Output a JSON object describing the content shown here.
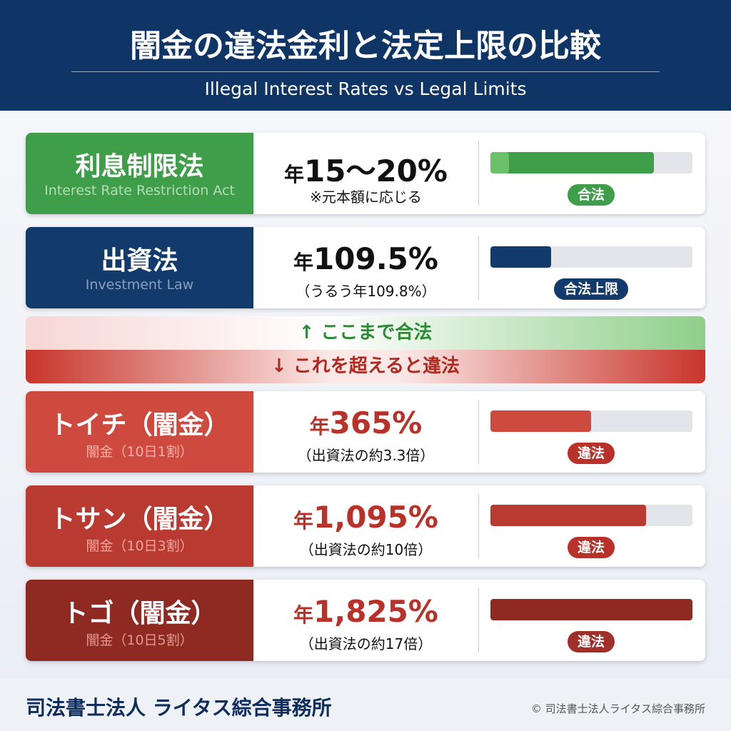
{
  "header": {
    "title": "闇金の違法金利と法定上限の比較",
    "subtitle": "Illegal Interest Rates vs Legal Limits"
  },
  "rows": [
    {
      "name": "利息制限法",
      "sub": "Interest Rate Restriction Act",
      "prefix": "年",
      "rate": "15～20%",
      "note": "※元本額に応じる",
      "badge": "合法"
    },
    {
      "name": "出資法",
      "sub": "Investment Law",
      "prefix": "年",
      "rate": "109.5%",
      "note": "（うるう年109.8%）",
      "badge": "合法上限"
    },
    {
      "name": "トイチ（闇金）",
      "sub": "闇金（10日1割）",
      "prefix": "年",
      "rate": "365%",
      "note": "（出資法の約3.3倍）",
      "badge": "違法"
    },
    {
      "name": "トサン（闇金）",
      "sub": "闇金（10日3割）",
      "prefix": "年",
      "rate": "1,095%",
      "note": "（出資法の約10倍）",
      "badge": "違法"
    },
    {
      "name": "トゴ（闇金）",
      "sub": "闇金（10日5割）",
      "prefix": "年",
      "rate": "1,825%",
      "note": "（出資法の約17倍）",
      "badge": "違法"
    }
  ],
  "divider": {
    "up": "↑ ここまで合法",
    "down": "↓ これを超えると違法"
  },
  "footer": {
    "firm": "司法書士法人 ライタス綜合事務所",
    "copyright": "© 司法書士法人ライタス綜合事務所"
  }
}
